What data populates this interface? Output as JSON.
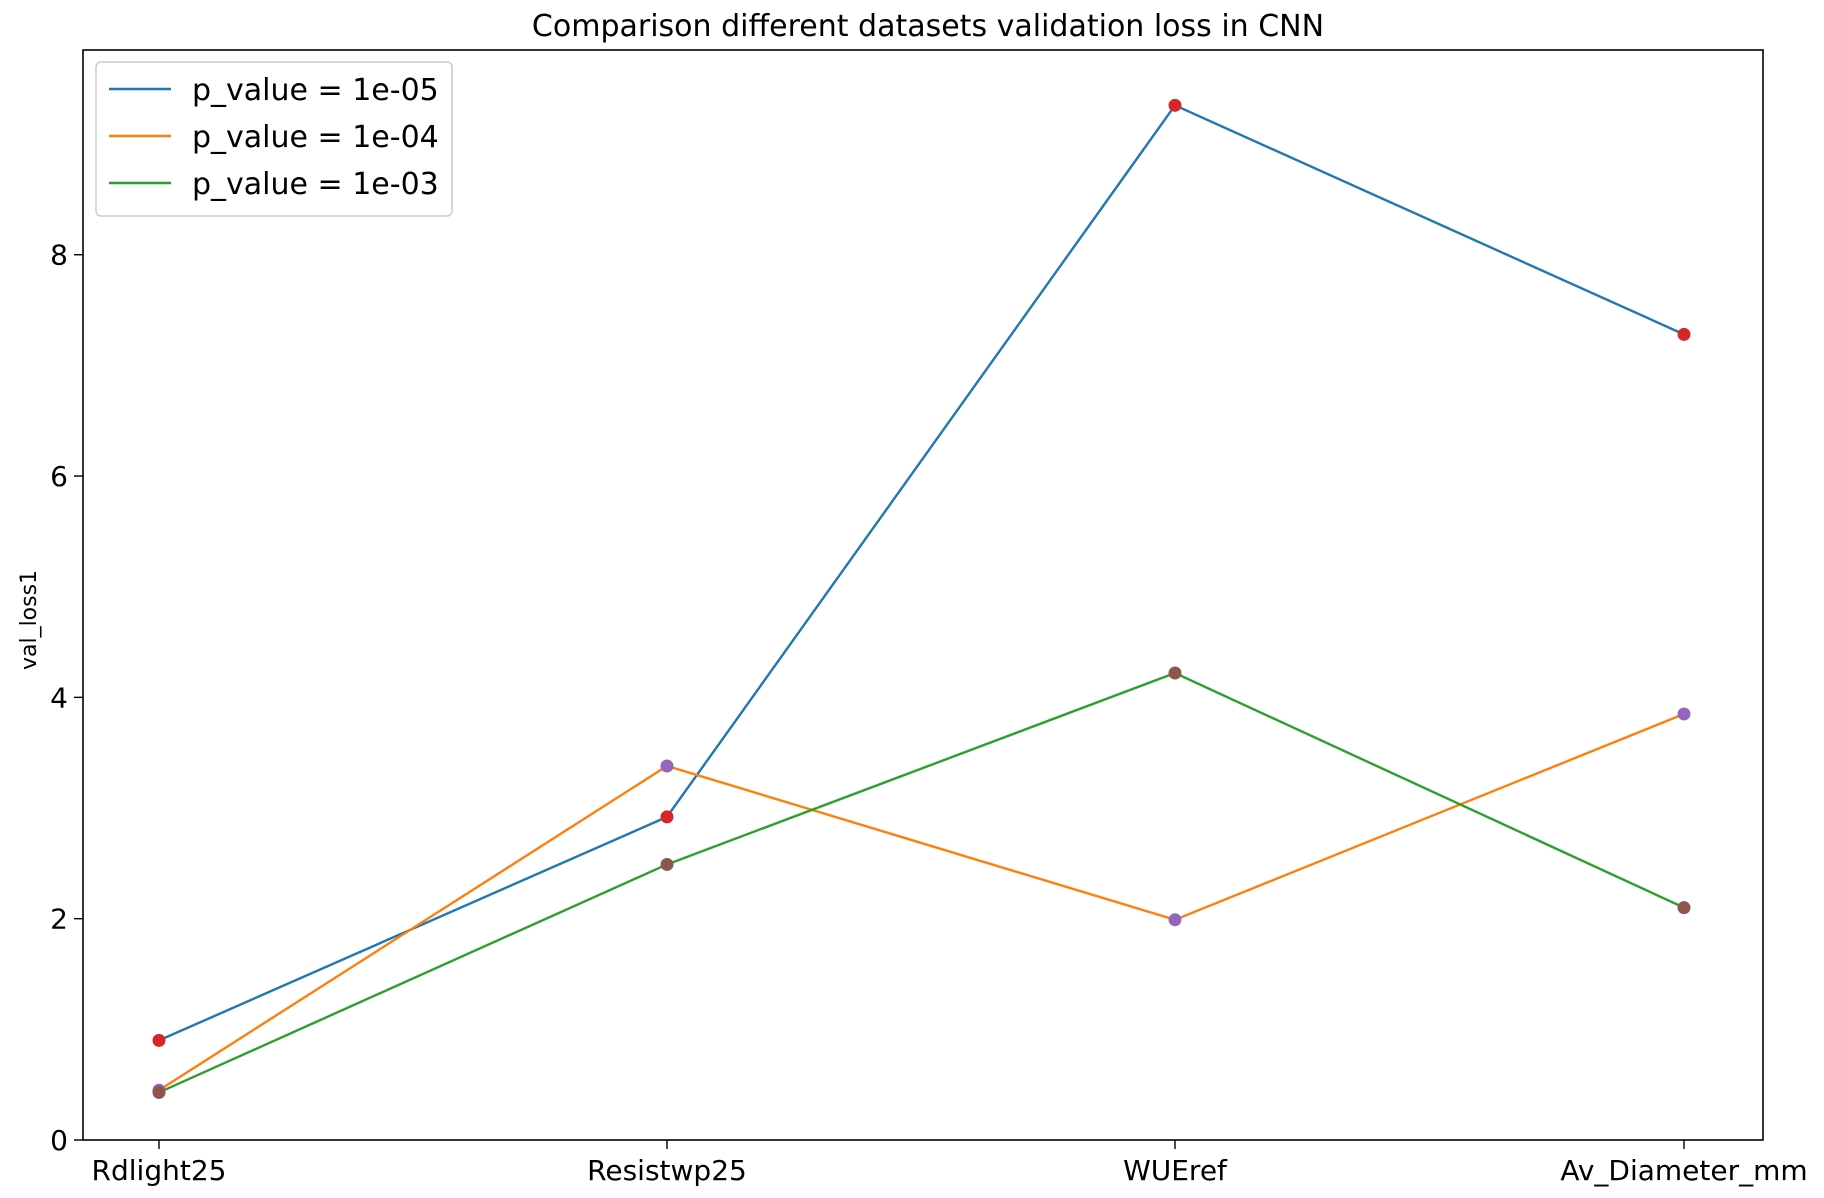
{
  "chart_data": {
    "type": "line",
    "title": "Comparison different datasets validation loss in CNN",
    "xlabel": "",
    "ylabel": "val_loss1",
    "categories": [
      "Rdlight25",
      "Resistwp25",
      "WUEref",
      "Av_Diameter_mm"
    ],
    "ylim": [
      0,
      9.85
    ],
    "yticks": [
      0,
      2,
      4,
      6,
      8
    ],
    "grid": false,
    "legend_position": "top-left",
    "series": [
      {
        "name": "p_value = 1e-05",
        "color": "#1f77b4",
        "marker_color": "#d62728",
        "values": [
          0.9,
          2.92,
          9.35,
          7.28
        ]
      },
      {
        "name": "p_value = 1e-04",
        "color": "#ff7f0e",
        "marker_color": "#9467bd",
        "values": [
          0.45,
          3.38,
          1.99,
          3.85
        ]
      },
      {
        "name": "p_value = 1e-03",
        "color": "#2ca02c",
        "marker_color": "#8c564b",
        "values": [
          0.43,
          2.49,
          4.22,
          2.1
        ]
      }
    ]
  }
}
